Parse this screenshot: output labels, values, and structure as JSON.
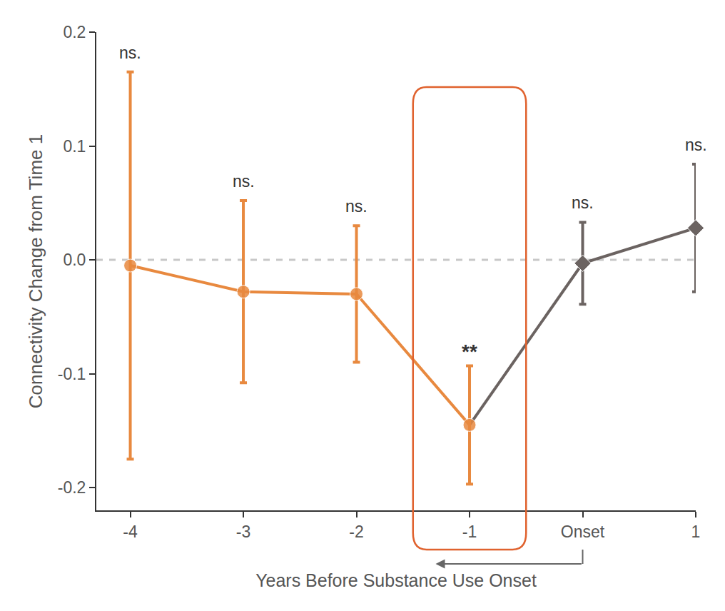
{
  "chart_data": {
    "type": "line",
    "x_label": "Years Before Substance Use Onset",
    "y_label": "Connectivity Change from Time 1",
    "categories": [
      "-4",
      "-3",
      "-2",
      "-1",
      "Onset",
      "1"
    ],
    "series": [
      {
        "color": "#E8893F",
        "marker": "circle",
        "line_style": "solid",
        "values": [
          -0.005,
          -0.028,
          -0.03,
          -0.145,
          null,
          null
        ],
        "error": [
          0.17,
          0.08,
          0.06,
          0.052,
          null,
          null
        ]
      },
      {
        "color": "#6B6361",
        "marker": "diamond",
        "line_style": "solid",
        "values": [
          null,
          null,
          null,
          -0.145,
          -0.003,
          0.028
        ],
        "error": [
          null,
          null,
          null,
          null,
          0.036,
          0.056
        ]
      }
    ],
    "annotations": [
      "ns.",
      "ns.",
      "ns.",
      "**",
      "ns.",
      "ns."
    ],
    "ylim": [
      -0.22,
      0.2
    ],
    "yticks": [
      -0.2,
      -0.1,
      {
        "value": 0,
        "label": "0.0"
      },
      0.1,
      0.2
    ],
    "grid": false,
    "reference_line": {
      "y": 0,
      "line_style": "dashed"
    },
    "highlight": "-1",
    "arrow": {
      "from": "Onset",
      "to": "-1"
    }
  }
}
